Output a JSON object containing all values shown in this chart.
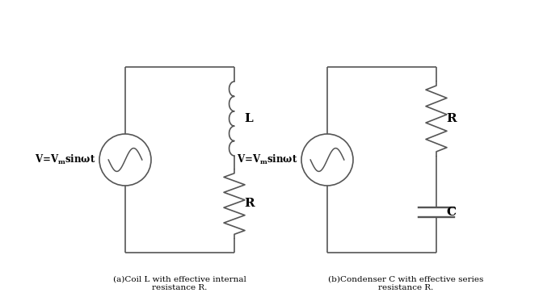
{
  "bg_color": "#ffffff",
  "line_color": "#555555",
  "text_color": "#000000",
  "fig_width": 6.72,
  "fig_height": 3.68,
  "dpi": 100,
  "caption_a": "(a)Coil L with effective internal\nresistance R.",
  "caption_b": "(b)Condenser C with effective series\nresistance R.",
  "label_L": "L",
  "label_R": "R",
  "label_C": "C"
}
